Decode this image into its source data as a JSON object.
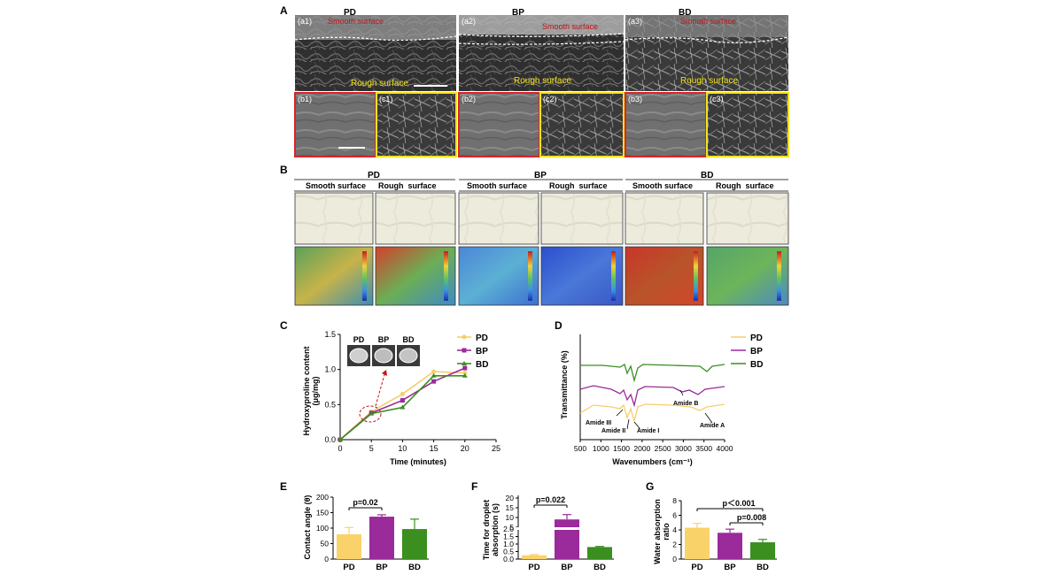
{
  "panel_a": {
    "letter": "A",
    "groups": [
      "PD",
      "BP",
      "BD"
    ],
    "tiles": {
      "a1": "(a1)",
      "a2": "(a2)",
      "a3": "(a3)",
      "b1": "(b1)",
      "b2": "(b2)",
      "b3": "(b3)",
      "c1": "(c1)",
      "c2": "(c2)",
      "c3": "(c3)"
    },
    "smooth_label": "Smooth surface",
    "rough_label": "Rough surface",
    "colors": {
      "smooth_text": "#c0141a",
      "rough_text": "#f2e21c",
      "b_frame": "#d9242a",
      "c_frame": "#f2e21c"
    }
  },
  "panel_b": {
    "letter": "B",
    "groups": [
      "PD",
      "BP",
      "BD"
    ],
    "col_labels": [
      "Smooth surface",
      "Rough  surface",
      "Smooth surface",
      "Rough  surface",
      "Smooth surface",
      "Rough  surface"
    ]
  },
  "chart_data": [
    {
      "panel": "C",
      "type": "line",
      "title": "",
      "xlabel": "Time (minutes)",
      "ylabel": "Hydroxyproline content (μg/mg)",
      "xlim": [
        0,
        25
      ],
      "ylim": [
        0,
        1.5
      ],
      "x_ticks": [
        "0",
        "5",
        "10",
        "15",
        "20",
        "25"
      ],
      "y_ticks": [
        "0.0",
        "0.5",
        "1.0",
        "1.5"
      ],
      "inset_labels": [
        "PD",
        "BP",
        "BD"
      ],
      "series": [
        {
          "name": "PD",
          "color": "#f6cf6b",
          "x": [
            0,
            5,
            10,
            15,
            20
          ],
          "y": [
            0,
            0.4,
            0.65,
            0.97,
            0.95
          ]
        },
        {
          "name": "BP",
          "color": "#9b2a9a",
          "x": [
            0,
            5,
            10,
            15,
            20
          ],
          "y": [
            0,
            0.38,
            0.56,
            0.83,
            1.02
          ]
        },
        {
          "name": "BD",
          "color": "#3a8f1f",
          "x": [
            0,
            5,
            10,
            15,
            20
          ],
          "y": [
            0,
            0.37,
            0.46,
            0.91,
            0.91
          ]
        }
      ]
    },
    {
      "panel": "D",
      "type": "line",
      "title": "",
      "xlabel": "Wavenumbers (cm⁻¹)",
      "ylabel": "Transmittance (%)",
      "xlim": [
        500,
        4000
      ],
      "x_ticks": [
        "500",
        "1000",
        "1500",
        "2000",
        "2500",
        "3000",
        "3500",
        "4000"
      ],
      "annotations": [
        "Amide B",
        "Amide III",
        "Amide II",
        "Amide I",
        "Amide A"
      ],
      "series": [
        {
          "name": "PD",
          "color": "#f6cf6b"
        },
        {
          "name": "BP",
          "color": "#9b2a9a"
        },
        {
          "name": "BD",
          "color": "#3a8f1f"
        }
      ]
    },
    {
      "panel": "E",
      "type": "bar",
      "ylabel": "Contact angle (θ)",
      "categories": [
        "PD",
        "BP",
        "BD"
      ],
      "values": [
        80,
        137,
        97
      ],
      "errors": [
        22,
        6,
        32
      ],
      "colors": [
        "#fad26a",
        "#9b2a9a",
        "#3a8f1f"
      ],
      "ylim": [
        0,
        200
      ],
      "y_ticks": [
        "0",
        "50",
        "100",
        "150",
        "200"
      ],
      "annotation": "p=0.02"
    },
    {
      "panel": "F",
      "type": "bar",
      "ylabel": "Time for droplet absorption (s)",
      "categories": [
        "PD",
        "BP",
        "BD"
      ],
      "values": [
        0.25,
        9,
        0.8
      ],
      "errors": [
        0.05,
        2.5,
        0.04
      ],
      "colors": [
        "#fad26a",
        "#9b2a9a",
        "#3a8f1f"
      ],
      "y_ticks_lower": [
        "0.0",
        "0.5",
        "1.0",
        "1.5",
        "2.0"
      ],
      "y_ticks_upper": [
        "5",
        "10",
        "15",
        "20"
      ],
      "annotation": "p=0.022"
    },
    {
      "panel": "G",
      "type": "bar",
      "ylabel": "Water absorption ratio",
      "categories": [
        "PD",
        "BP",
        "BD"
      ],
      "values": [
        4.3,
        3.6,
        2.3
      ],
      "errors": [
        0.6,
        0.5,
        0.4
      ],
      "colors": [
        "#fad26a",
        "#9b2a9a",
        "#3a8f1f"
      ],
      "ylim": [
        0,
        8
      ],
      "y_ticks": [
        "0",
        "2",
        "4",
        "6",
        "8"
      ],
      "annotations": [
        "p＜0.001",
        "p=0.008"
      ]
    }
  ],
  "panel_letters": {
    "c": "C",
    "d": "D",
    "e": "E",
    "f": "F",
    "g": "G"
  },
  "panel_c": {
    "ylabel_1": "Hydroxyproline content",
    "ylabel_2": "(μg/mg)"
  },
  "panel_d": {
    "ylabel": "Transmittance (%)",
    "xlabel": "Wavenumbers (cm⁻¹)"
  },
  "panel_f": {
    "ylabel_1": "Time for droplet",
    "ylabel_2": "absorption (s)"
  }
}
